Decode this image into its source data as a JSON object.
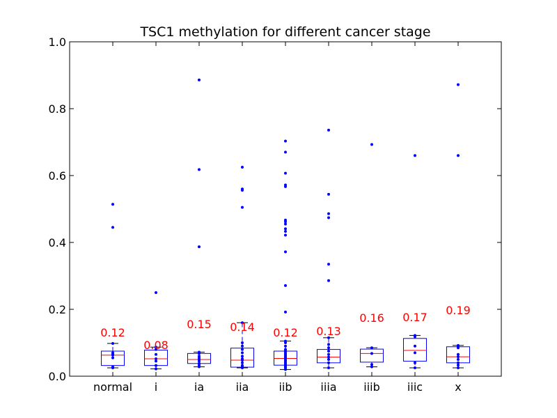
{
  "chart_data": {
    "type": "box",
    "title": "TSC1 methylation for different cancer stage",
    "xlabel": "",
    "ylabel": "",
    "ylim": [
      0.0,
      1.0
    ],
    "yticks": [
      "0.0",
      "0.2",
      "0.4",
      "0.6",
      "0.8",
      "1.0"
    ],
    "grid": false,
    "categories": [
      "normal",
      "i",
      "ia",
      "iia",
      "iib",
      "iiia",
      "iiib",
      "iiic",
      "x"
    ],
    "boxes": [
      {
        "q1": 0.032,
        "median": 0.063,
        "q3": 0.075,
        "whisker_low": 0.025,
        "whisker_high": 0.098,
        "outliers": [
          0.445,
          0.514
        ]
      },
      {
        "q1": 0.032,
        "median": 0.052,
        "q3": 0.078,
        "whisker_low": 0.022,
        "whisker_high": 0.087,
        "outliers": [
          0.25
        ]
      },
      {
        "q1": 0.038,
        "median": 0.05,
        "q3": 0.068,
        "whisker_low": 0.028,
        "whisker_high": 0.072,
        "outliers": [
          0.387,
          0.618,
          0.886
        ]
      },
      {
        "q1": 0.027,
        "median": 0.048,
        "q3": 0.084,
        "whisker_low": 0.025,
        "whisker_high": 0.16,
        "outliers": [
          0.505,
          0.556,
          0.56,
          0.625
        ]
      },
      {
        "q1": 0.033,
        "median": 0.053,
        "q3": 0.075,
        "whisker_low": 0.02,
        "whisker_high": 0.105,
        "outliers": [
          0.192,
          0.271,
          0.372,
          0.422,
          0.433,
          0.441,
          0.455,
          0.462,
          0.467,
          0.567,
          0.572,
          0.607,
          0.67,
          0.703
        ]
      },
      {
        "q1": 0.04,
        "median": 0.057,
        "q3": 0.08,
        "whisker_low": 0.025,
        "whisker_high": 0.115,
        "outliers": [
          0.286,
          0.335,
          0.474,
          0.486,
          0.544,
          0.736
        ]
      },
      {
        "q1": 0.042,
        "median": 0.068,
        "q3": 0.081,
        "whisker_low": 0.028,
        "whisker_high": 0.085,
        "outliers": [
          0.693
        ]
      },
      {
        "q1": 0.045,
        "median": 0.077,
        "q3": 0.113,
        "whisker_low": 0.025,
        "whisker_high": 0.122,
        "outliers": [
          0.66
        ]
      },
      {
        "q1": 0.04,
        "median": 0.058,
        "q3": 0.088,
        "whisker_low": 0.025,
        "whisker_high": 0.092,
        "outliers": [
          0.66,
          0.872
        ]
      }
    ],
    "points": [
      [
        0.025,
        0.028,
        0.055,
        0.063,
        0.066,
        0.07,
        0.098
      ],
      [
        0.022,
        0.032,
        0.045,
        0.052,
        0.065,
        0.08,
        0.087
      ],
      [
        0.028,
        0.033,
        0.038,
        0.045,
        0.05,
        0.055,
        0.06,
        0.068,
        0.07,
        0.072
      ],
      [
        0.025,
        0.028,
        0.032,
        0.04,
        0.048,
        0.052,
        0.06,
        0.07,
        0.08,
        0.09,
        0.1,
        0.16
      ],
      [
        0.02,
        0.025,
        0.028,
        0.03,
        0.033,
        0.036,
        0.04,
        0.044,
        0.048,
        0.052,
        0.056,
        0.06,
        0.064,
        0.068,
        0.072,
        0.076,
        0.08,
        0.09,
        0.1,
        0.105
      ],
      [
        0.025,
        0.04,
        0.05,
        0.057,
        0.065,
        0.075,
        0.085,
        0.095,
        0.115
      ],
      [
        0.028,
        0.035,
        0.068,
        0.085
      ],
      [
        0.025,
        0.04,
        0.07,
        0.09,
        0.118,
        0.122
      ],
      [
        0.025,
        0.033,
        0.04,
        0.05,
        0.058,
        0.065,
        0.085,
        0.09,
        0.092
      ]
    ],
    "annotations": [
      {
        "text": "0.12",
        "y": 0.131
      },
      {
        "text": "0.08",
        "y": 0.094
      },
      {
        "text": "0.15",
        "y": 0.156
      },
      {
        "text": "0.14",
        "y": 0.148
      },
      {
        "text": "0.12",
        "y": 0.131
      },
      {
        "text": "0.13",
        "y": 0.135
      },
      {
        "text": "0.16",
        "y": 0.175
      },
      {
        "text": "0.17",
        "y": 0.177
      },
      {
        "text": "0.19",
        "y": 0.198
      }
    ],
    "colors": {
      "box": "#0000ff",
      "median": "#ff0000",
      "points": "#0000ff",
      "annotation": "#ff0000",
      "axes": "#000000"
    }
  }
}
